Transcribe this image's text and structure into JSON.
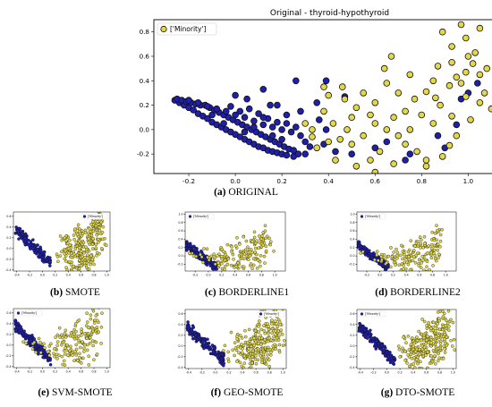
{
  "colors": {
    "majority_fill": "#1f1fa8",
    "minority_fill": "#e2d84a",
    "marker_edge": "#111111",
    "frame": "#000000"
  },
  "chart_data": [
    {
      "id": "original",
      "type": "scatter",
      "title": "Original - thyroid-hypothyroid",
      "caption_letter": "(a)",
      "caption_text": "ORIGINAL",
      "legend_label": "['Minority']",
      "legend_position": "top-left",
      "xlim": [
        -0.35,
        1.16
      ],
      "ylim": [
        -0.36,
        0.9
      ],
      "x_ticks": [
        "-0.2",
        "0.0",
        "0.2",
        "0.4",
        "0.6",
        "0.8",
        "1.0"
      ],
      "x_tick_values": [
        -0.2,
        0.0,
        0.2,
        0.4,
        0.6,
        0.8,
        1.0
      ],
      "y_ticks": [
        "-0.2",
        "0.0",
        "0.2",
        "0.4",
        "0.6",
        "0.8"
      ],
      "y_tick_values": [
        -0.2,
        0.0,
        0.2,
        0.4,
        0.6,
        0.8
      ],
      "series": [
        {
          "role": "majority",
          "points": [
            [
              -0.26,
              0.24
            ],
            [
              -0.24,
              0.22
            ],
            [
              -0.22,
              0.2
            ],
            [
              -0.2,
              0.18
            ],
            [
              -0.18,
              0.16
            ],
            [
              -0.16,
              0.13
            ],
            [
              -0.14,
              0.11
            ],
            [
              -0.12,
              0.09
            ],
            [
              -0.1,
              0.06
            ],
            [
              -0.08,
              0.04
            ],
            [
              -0.06,
              0.02
            ],
            [
              -0.04,
              0.0
            ],
            [
              -0.02,
              -0.02
            ],
            [
              0.0,
              -0.04
            ],
            [
              0.02,
              -0.06
            ],
            [
              0.04,
              -0.08
            ],
            [
              0.06,
              -0.1
            ],
            [
              0.08,
              -0.12
            ],
            [
              0.1,
              -0.14
            ],
            [
              0.12,
              -0.15
            ],
            [
              0.14,
              -0.17
            ],
            [
              0.16,
              -0.18
            ],
            [
              0.18,
              -0.19
            ],
            [
              0.2,
              -0.2
            ],
            [
              0.22,
              -0.21
            ],
            [
              0.25,
              -0.22
            ],
            [
              -0.25,
              0.25
            ],
            [
              -0.23,
              0.24
            ],
            [
              -0.21,
              0.23
            ],
            [
              -0.19,
              0.22
            ],
            [
              -0.17,
              0.21
            ],
            [
              -0.15,
              0.2
            ],
            [
              -0.13,
              0.2
            ],
            [
              -0.11,
              0.18
            ],
            [
              -0.09,
              0.16
            ],
            [
              -0.07,
              0.14
            ],
            [
              -0.05,
              0.12
            ],
            [
              -0.03,
              0.1
            ],
            [
              -0.01,
              0.08
            ],
            [
              0.01,
              0.06
            ],
            [
              0.03,
              0.04
            ],
            [
              0.05,
              0.02
            ],
            [
              0.07,
              0.0
            ],
            [
              0.09,
              -0.02
            ],
            [
              0.11,
              -0.04
            ],
            [
              0.13,
              -0.06
            ],
            [
              0.15,
              -0.08
            ],
            [
              0.17,
              -0.1
            ],
            [
              0.19,
              -0.12
            ],
            [
              0.21,
              -0.14
            ],
            [
              0.23,
              -0.16
            ],
            [
              0.25,
              -0.17
            ],
            [
              -0.2,
              0.24
            ],
            [
              -0.16,
              0.22
            ],
            [
              -0.12,
              0.19
            ],
            [
              -0.08,
              0.17
            ],
            [
              -0.04,
              0.15
            ],
            [
              0.0,
              0.12
            ],
            [
              0.04,
              0.1
            ],
            [
              0.08,
              0.07
            ],
            [
              0.12,
              0.04
            ],
            [
              0.16,
              0.02
            ],
            [
              0.2,
              0.0
            ],
            [
              0.24,
              -0.02
            ],
            [
              0.28,
              -0.05
            ],
            [
              -0.02,
              0.19
            ],
            [
              0.02,
              0.15
            ],
            [
              0.06,
              0.17
            ],
            [
              0.1,
              0.13
            ],
            [
              0.14,
              0.09
            ],
            [
              0.18,
              0.06
            ],
            [
              0.22,
              0.05
            ],
            [
              0.26,
              0.02
            ],
            [
              0.3,
              -0.1
            ],
            [
              0.32,
              -0.14
            ],
            [
              0.27,
              -0.2
            ],
            [
              0.3,
              -0.2
            ],
            [
              0.12,
              0.1
            ],
            [
              0.15,
              0.2
            ],
            [
              0.05,
              0.25
            ],
            [
              0.0,
              0.28
            ],
            [
              0.18,
              0.2
            ],
            [
              0.12,
              0.33
            ],
            [
              0.26,
              0.4
            ],
            [
              0.39,
              0.4
            ],
            [
              0.47,
              0.27
            ],
            [
              0.35,
              0.22
            ],
            [
              0.36,
              0.08
            ],
            [
              0.39,
              0.0
            ],
            [
              0.38,
              -0.12
            ],
            [
              0.43,
              -0.18
            ],
            [
              0.5,
              -0.2
            ],
            [
              0.6,
              -0.15
            ],
            [
              0.65,
              -0.1
            ],
            [
              0.73,
              -0.25
            ],
            [
              0.75,
              -0.2
            ],
            [
              0.87,
              -0.05
            ],
            [
              0.9,
              -0.15
            ],
            [
              0.95,
              0.04
            ],
            [
              1.0,
              0.3
            ],
            [
              0.97,
              0.25
            ],
            [
              1.04,
              0.38
            ],
            [
              0.28,
              0.15
            ],
            [
              0.22,
              0.12
            ],
            [
              -0.05,
              0.05
            ],
            [
              -0.1,
              0.12
            ],
            [
              0.04,
              -0.02
            ],
            [
              0.08,
              0.02
            ],
            [
              0.16,
              -0.05
            ],
            [
              0.2,
              -0.08
            ]
          ]
        },
        {
          "role": "minority",
          "points": [
            [
              0.97,
              0.86
            ],
            [
              0.89,
              0.8
            ],
            [
              1.05,
              0.83
            ],
            [
              0.99,
              0.75
            ],
            [
              1.03,
              0.63
            ],
            [
              0.93,
              0.55
            ],
            [
              1.02,
              0.54
            ],
            [
              1.08,
              0.5
            ],
            [
              0.99,
              0.47
            ],
            [
              0.95,
              0.43
            ],
            [
              1.05,
              0.45
            ],
            [
              0.92,
              0.36
            ],
            [
              0.82,
              0.31
            ],
            [
              0.86,
              0.26
            ],
            [
              0.88,
              0.2
            ],
            [
              0.93,
              0.11
            ],
            [
              1.01,
              0.08
            ],
            [
              1.1,
              0.17
            ],
            [
              0.99,
              0.27
            ],
            [
              0.97,
              0.38
            ],
            [
              0.75,
              0.45
            ],
            [
              0.64,
              0.5
            ],
            [
              0.67,
              0.6
            ],
            [
              0.65,
              0.38
            ],
            [
              0.7,
              0.3
            ],
            [
              0.77,
              0.25
            ],
            [
              0.6,
              0.22
            ],
            [
              0.55,
              0.3
            ],
            [
              0.52,
              0.18
            ],
            [
              0.5,
              0.1
            ],
            [
              0.6,
              0.05
            ],
            [
              0.65,
              0.0
            ],
            [
              0.55,
              -0.05
            ],
            [
              0.48,
              0.0
            ],
            [
              0.45,
              -0.08
            ],
            [
              0.4,
              -0.1
            ],
            [
              0.35,
              -0.15
            ],
            [
              0.43,
              -0.25
            ],
            [
              0.52,
              -0.3
            ],
            [
              0.58,
              -0.25
            ],
            [
              0.6,
              -0.35
            ],
            [
              0.7,
              -0.05
            ],
            [
              0.73,
              -0.12
            ],
            [
              0.78,
              -0.18
            ],
            [
              0.82,
              -0.25
            ],
            [
              0.82,
              -0.3
            ],
            [
              0.89,
              -0.22
            ],
            [
              0.92,
              -0.13
            ],
            [
              0.95,
              -0.05
            ],
            [
              0.85,
              0.05
            ],
            [
              0.8,
              0.12
            ],
            [
              0.73,
              0.15
            ],
            [
              0.68,
              0.1
            ],
            [
              0.58,
              0.12
            ],
            [
              0.47,
              0.25
            ],
            [
              0.4,
              0.28
            ],
            [
              0.38,
              0.35
            ],
            [
              0.46,
              0.35
            ],
            [
              0.42,
              0.05
            ],
            [
              0.38,
              0.15
            ],
            [
              0.33,
              0.0
            ],
            [
              0.3,
              0.05
            ],
            [
              0.33,
              -0.06
            ],
            [
              0.5,
              -0.12
            ],
            [
              0.62,
              -0.18
            ],
            [
              0.68,
              -0.28
            ],
            [
              0.75,
              0.0
            ],
            [
              0.85,
              0.4
            ],
            [
              0.87,
              0.52
            ],
            [
              0.93,
              0.68
            ],
            [
              1.0,
              0.6
            ],
            [
              1.05,
              0.22
            ],
            [
              1.07,
              0.3
            ]
          ]
        }
      ]
    },
    {
      "id": "smote",
      "type": "scatter",
      "caption_letter": "(b)",
      "caption_text": "SMOTE",
      "legend_label": "['Minority']",
      "legend_position": "top-right",
      "xlim": [
        -0.45,
        1.05
      ],
      "ylim": [
        -0.42,
        0.68
      ],
      "x_ticks": [
        "-0.4",
        "-0.2",
        "0.0",
        "0.2",
        "0.4",
        "0.6",
        "0.8",
        "1.0"
      ],
      "x_tick_values": [
        -0.4,
        -0.2,
        0.0,
        0.2,
        0.4,
        0.6,
        0.8,
        1.0
      ],
      "y_ticks": [
        "-0.4",
        "-0.2",
        "0.0",
        "0.2",
        "0.4",
        "0.6"
      ],
      "y_tick_values": [
        -0.4,
        -0.2,
        0.0,
        0.2,
        0.4,
        0.6
      ]
    },
    {
      "id": "borderline1",
      "type": "scatter",
      "caption_letter": "(c)",
      "caption_text": "BORDERLINE1",
      "legend_label": "['Minority']",
      "legend_position": "top-left",
      "xlim": [
        -0.35,
        1.16
      ],
      "ylim": [
        -0.36,
        1.05
      ],
      "x_ticks": [
        "-0.2",
        "0.0",
        "0.2",
        "0.4",
        "0.6",
        "0.8",
        "1.0"
      ],
      "x_tick_values": [
        -0.2,
        0.0,
        0.2,
        0.4,
        0.6,
        0.8,
        1.0
      ],
      "y_ticks": [
        "-0.2",
        "0.0",
        "0.2",
        "0.4",
        "0.6",
        "0.8",
        "1.0"
      ],
      "y_tick_values": [
        -0.2,
        0.0,
        0.2,
        0.4,
        0.6,
        0.8,
        1.0
      ]
    },
    {
      "id": "borderline2",
      "type": "scatter",
      "caption_letter": "(d)",
      "caption_text": "BORDERLINE2",
      "legend_label": "['Minority']",
      "legend_position": "top-left",
      "xlim": [
        -0.35,
        1.16
      ],
      "ylim": [
        -0.36,
        1.05
      ],
      "x_ticks": [
        "-0.2",
        "0.0",
        "0.2",
        "0.4",
        "0.6",
        "0.8",
        "1.0"
      ],
      "x_tick_values": [
        -0.2,
        0.0,
        0.2,
        0.4,
        0.6,
        0.8,
        1.0
      ],
      "y_ticks": [
        "-0.2",
        "0.0",
        "0.2",
        "0.4",
        "0.6",
        "0.8",
        "1.0"
      ],
      "y_tick_values": [
        -0.2,
        0.0,
        0.2,
        0.4,
        0.6,
        0.8,
        1.0
      ]
    },
    {
      "id": "svm-smote",
      "type": "scatter",
      "caption_letter": "(e)",
      "caption_text": "SVM-SMOTE",
      "legend_label": "['Minority']",
      "legend_position": "top-left",
      "xlim": [
        -0.45,
        1.05
      ],
      "ylim": [
        -0.42,
        0.68
      ],
      "x_ticks": [
        "-0.4",
        "-0.2",
        "0.0",
        "0.2",
        "0.4",
        "0.6",
        "0.8",
        "1.0"
      ],
      "x_tick_values": [
        -0.4,
        -0.2,
        0.0,
        0.2,
        0.4,
        0.6,
        0.8,
        1.0
      ],
      "y_ticks": [
        "-0.4",
        "-0.2",
        "0.0",
        "0.2",
        "0.4",
        "0.6"
      ],
      "y_tick_values": [
        -0.4,
        -0.2,
        0.0,
        0.2,
        0.4,
        0.6
      ]
    },
    {
      "id": "geo-smote",
      "type": "scatter",
      "caption_letter": "(f)",
      "caption_text": "GEO-SMOTE",
      "legend_label": "['Minority']",
      "legend_position": "top-right",
      "xlim": [
        -0.45,
        1.05
      ],
      "ylim": [
        -0.42,
        0.68
      ],
      "x_ticks": [
        "-0.4",
        "-0.2",
        "0.0",
        "0.2",
        "0.4",
        "0.6",
        "0.8",
        "1.0"
      ],
      "x_tick_values": [
        -0.4,
        -0.2,
        0.0,
        0.2,
        0.4,
        0.6,
        0.8,
        1.0
      ],
      "y_ticks": [
        "-0.4",
        "-0.2",
        "0.0",
        "0.2",
        "0.4",
        "0.6"
      ],
      "y_tick_values": [
        -0.4,
        -0.2,
        0.0,
        0.2,
        0.4,
        0.6
      ]
    },
    {
      "id": "dto-smote",
      "type": "scatter",
      "caption_letter": "(g)",
      "caption_text": "DTO-SMOTE",
      "legend_label": "['Minority']",
      "legend_position": "top-left",
      "xlim": [
        -0.45,
        1.05
      ],
      "ylim": [
        -0.42,
        0.68
      ],
      "x_ticks": [
        "-0.4",
        "-0.2",
        "0.0",
        "0.2",
        "0.4",
        "0.6",
        "0.8",
        "1.0"
      ],
      "x_tick_values": [
        -0.4,
        -0.2,
        0.0,
        0.2,
        0.4,
        0.6,
        0.8,
        1.0
      ],
      "y_ticks": [
        "-0.4",
        "-0.2",
        "0.0",
        "0.2",
        "0.4",
        "0.6"
      ],
      "y_tick_values": [
        -0.4,
        -0.2,
        0.0,
        0.2,
        0.4,
        0.6
      ]
    }
  ]
}
